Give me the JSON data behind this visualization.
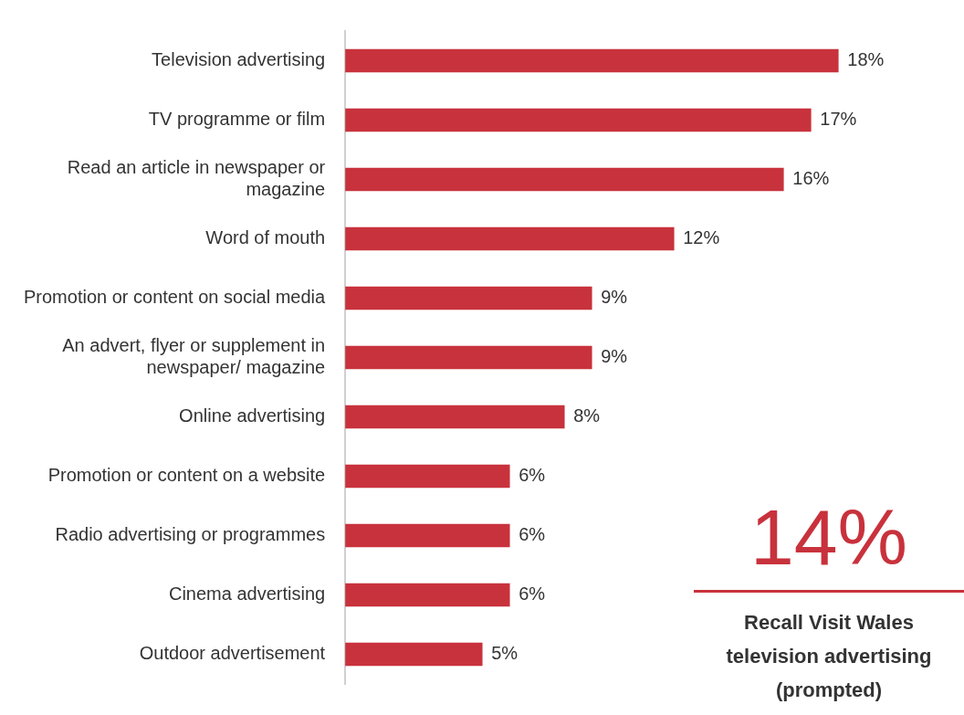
{
  "chart_data": {
    "type": "bar",
    "orientation": "horizontal",
    "categories": [
      "Television advertising",
      "TV programme or film",
      "Read an article in newspaper or magazine",
      "Word of mouth",
      "Promotion or content on social media",
      "An advert, flyer or supplement in newspaper/ magazine",
      "Online advertising",
      "Promotion or content on a website",
      "Radio advertising or programmes",
      "Cinema advertising",
      "Outdoor advertisement"
    ],
    "values": [
      18,
      17,
      16,
      12,
      9,
      9,
      8,
      6,
      6,
      6,
      5
    ],
    "value_labels": [
      "18%",
      "17%",
      "16%",
      "12%",
      "9%",
      "9%",
      "8%",
      "6%",
      "6%",
      "6%",
      "5%"
    ],
    "color": "#c8323c",
    "grid": false,
    "legend": false,
    "tick_labels": "y",
    "annotations": [
      "14%",
      "Recall Visit Wales television advertising (prompted)"
    ]
  }
}
